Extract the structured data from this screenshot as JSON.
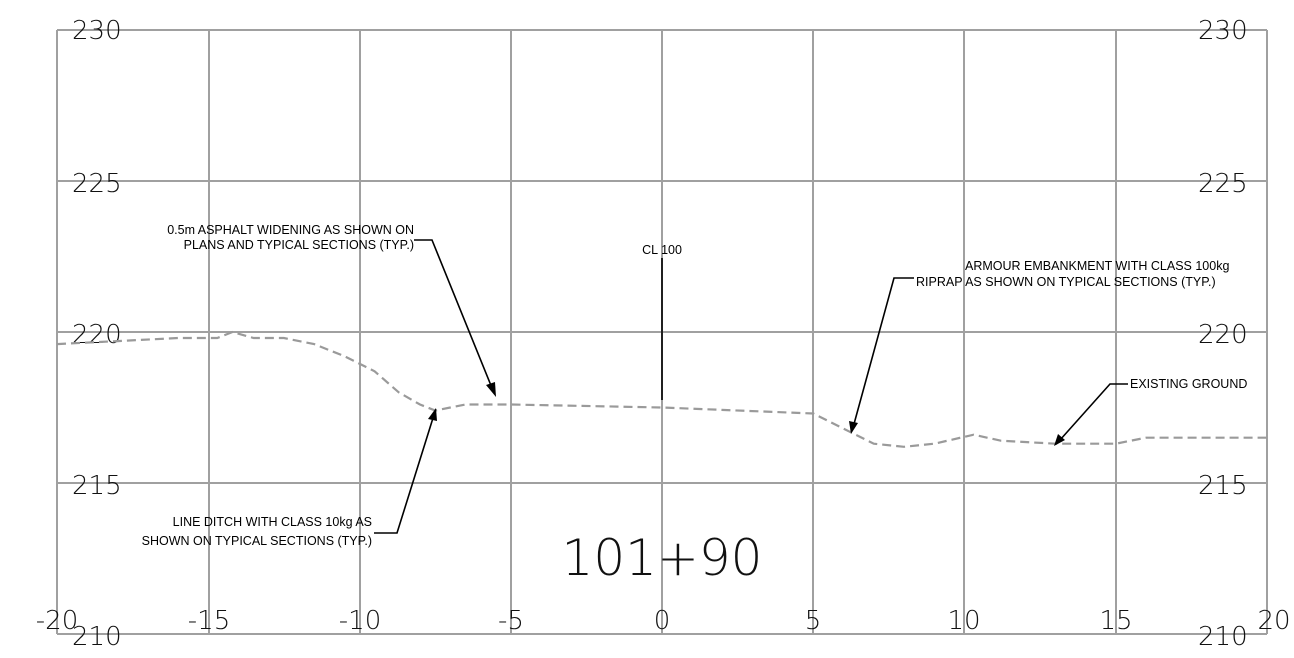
{
  "section": {
    "station": "101+90",
    "elevation_labels_left": [
      "230",
      "225",
      "220",
      "215",
      "210"
    ],
    "elevation_labels_right": [
      "230",
      "225",
      "220",
      "215",
      "210"
    ],
    "offset_labels": [
      "-20",
      "-15",
      "-10",
      "-5",
      "0",
      "5",
      "10",
      "15",
      "20"
    ],
    "centerline_label": "CL 100"
  },
  "annotations": {
    "asphalt_line1": "0.5m ASPHALT WIDENING AS SHOWN ON",
    "asphalt_line2": "PLANS AND TYPICAL SECTIONS (TYP.)",
    "armour_line1": "ARMOUR EMBANKMENT WITH CLASS 100kg",
    "armour_line2": "RIPRAP AS SHOWN ON TYPICAL SECTIONS (TYP.)",
    "ditch_line1": "LINE DITCH WITH CLASS 10kg AS",
    "ditch_line2": "SHOWN ON TYPICAL SECTIONS (TYP.)",
    "existing_ground": "EXISTING GROUND"
  },
  "chart_data": {
    "type": "line",
    "x_range": [
      -20,
      20
    ],
    "y_range": [
      210,
      230
    ],
    "grid": true,
    "series": [
      {
        "name": "EXISTING GROUND",
        "color": "#9a9a9a",
        "style": "dashed",
        "points": [
          [
            -20,
            219.6
          ],
          [
            -18,
            219.7
          ],
          [
            -16,
            219.8
          ],
          [
            -14.7,
            219.8
          ],
          [
            -14.2,
            220.0
          ],
          [
            -13.5,
            219.8
          ],
          [
            -12.5,
            219.8
          ],
          [
            -11.5,
            219.6
          ],
          [
            -10.5,
            219.2
          ],
          [
            -9.5,
            218.7
          ],
          [
            -8.7,
            218.0
          ],
          [
            -8,
            217.6
          ],
          [
            -7.5,
            217.4
          ],
          [
            -7,
            217.5
          ],
          [
            -6.5,
            217.6
          ],
          [
            -5,
            217.6
          ],
          [
            0,
            217.5
          ],
          [
            5,
            217.3
          ],
          [
            6.2,
            216.7
          ],
          [
            7,
            216.3
          ],
          [
            8,
            216.2
          ],
          [
            9,
            216.3
          ],
          [
            10.3,
            216.6
          ],
          [
            11.2,
            216.4
          ],
          [
            13,
            216.3
          ],
          [
            15,
            216.3
          ],
          [
            16,
            216.5
          ],
          [
            18,
            216.5
          ],
          [
            20,
            216.5
          ]
        ]
      }
    ]
  }
}
